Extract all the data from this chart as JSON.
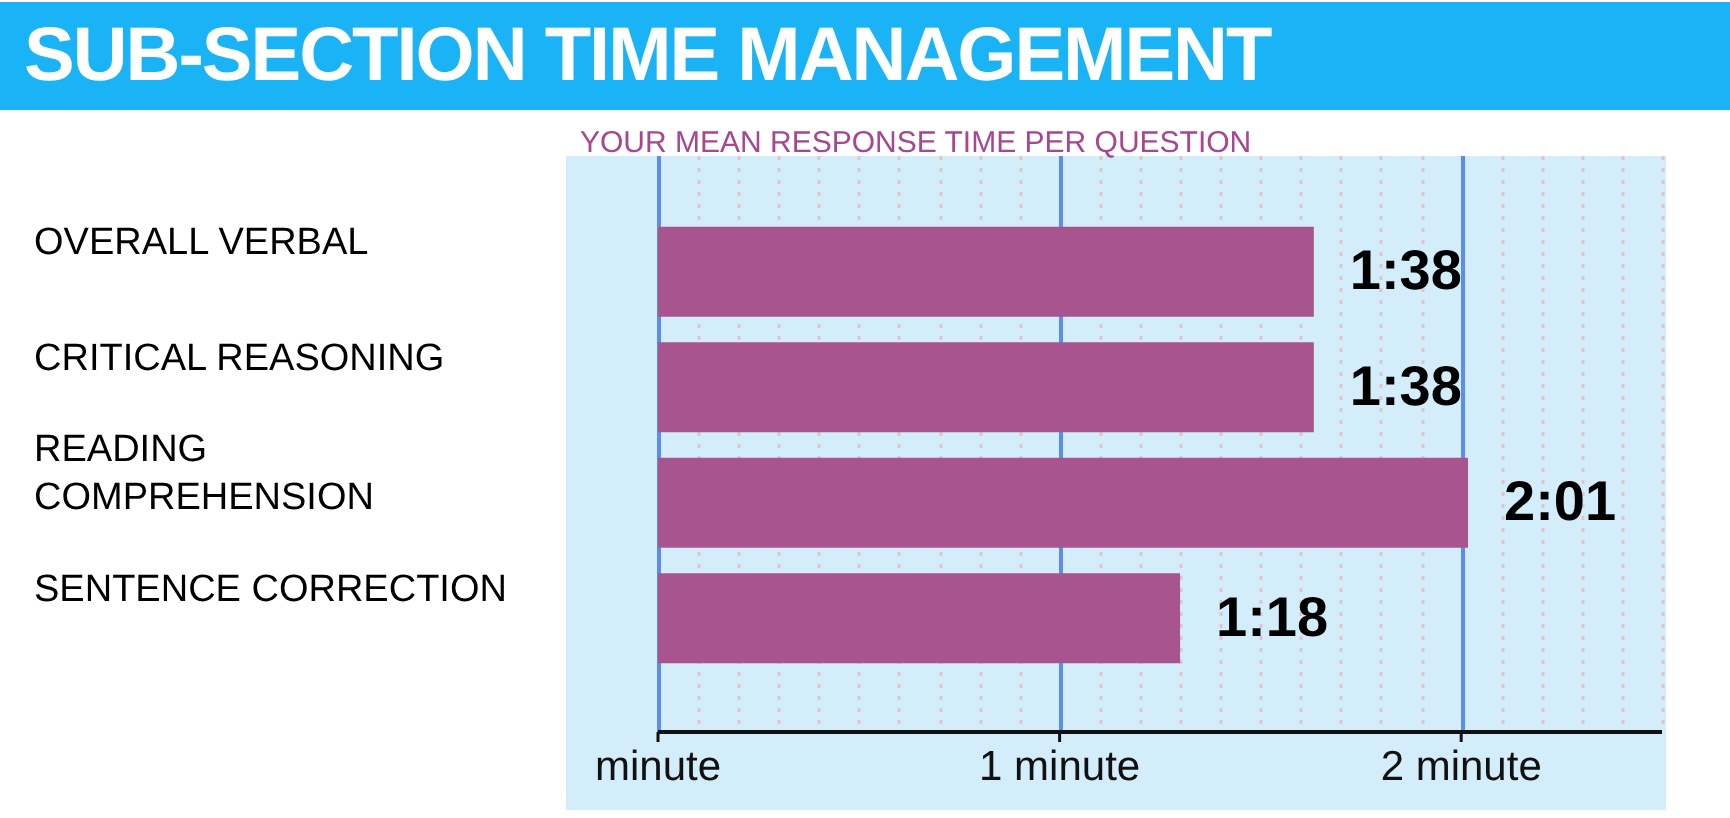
{
  "chart_data": {
    "type": "bar",
    "orientation": "horizontal",
    "title": "SUB-SECTION TIME MANAGEMENT",
    "subtitle": "YOUR MEAN RESPONSE TIME PER QUESTION",
    "categories": [
      "OVERALL VERBAL",
      "CRITICAL REASONING",
      "READING COMPREHENSION",
      "SENTENCE CORRECTION"
    ],
    "values": [
      1.633,
      1.633,
      2.017,
      1.3
    ],
    "value_labels": [
      "1:38",
      "1:38",
      "2:01",
      "1:18"
    ],
    "color": "#a8548f",
    "xlim": [
      0,
      2.5
    ],
    "xticks": [
      {
        "value": 0,
        "label": "minute"
      },
      {
        "value": 0.1,
        "label": null
      },
      {
        "value": 0.2,
        "label": null
      },
      {
        "value": 0.3,
        "label": null
      },
      {
        "value": 0.4,
        "label": null
      },
      {
        "value": 0.5,
        "label": null
      },
      {
        "value": 0.6,
        "label": null
      },
      {
        "value": 0.7,
        "label": null
      },
      {
        "value": 0.8,
        "label": null
      },
      {
        "value": 0.9,
        "label": null
      },
      {
        "value": 1,
        "label": "1 minute"
      },
      {
        "value": 1.1,
        "label": null
      },
      {
        "value": 1.2,
        "label": null
      },
      {
        "value": 1.3,
        "label": null
      },
      {
        "value": 1.4,
        "label": null
      },
      {
        "value": 1.5,
        "label": null
      },
      {
        "value": 1.6,
        "label": null
      },
      {
        "value": 1.7,
        "label": null
      },
      {
        "value": 1.8,
        "label": null
      },
      {
        "value": 1.9,
        "label": null
      },
      {
        "value": 2,
        "label": "2 minute"
      },
      {
        "value": 2.1,
        "label": null
      },
      {
        "value": 2.2,
        "label": null
      },
      {
        "value": 2.3,
        "label": null
      },
      {
        "value": 2.4,
        "label": null
      },
      {
        "value": 2.5,
        "label": null
      }
    ],
    "grid": "x"
  }
}
